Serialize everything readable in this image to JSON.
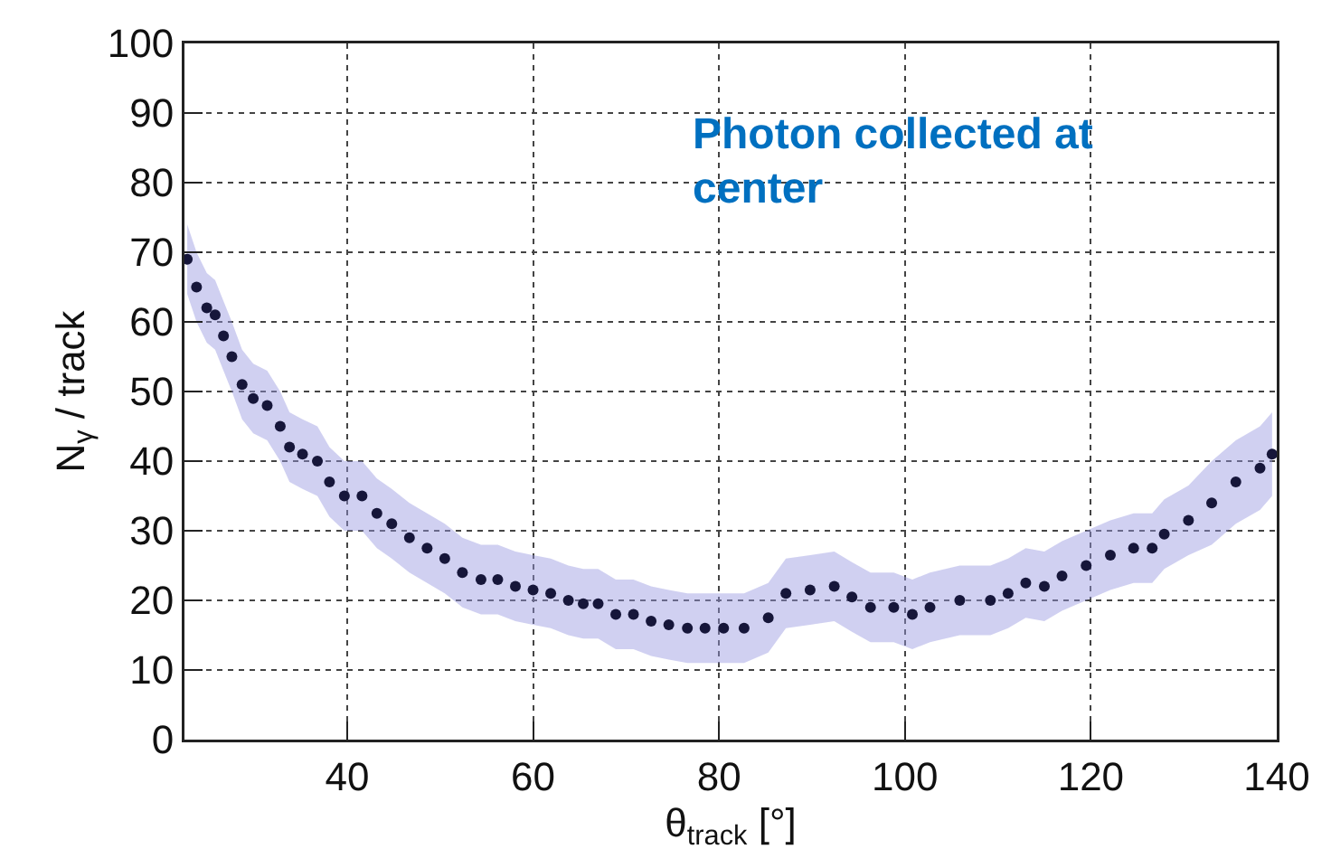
{
  "chart_data": {
    "type": "scatter",
    "xlabel": "θ$_{track}$ [°]",
    "ylabel": "N$_{γ}$ / track",
    "annotations": [
      "Photon collected at center"
    ],
    "xlim": [
      22.5,
      140
    ],
    "xticks": [
      40,
      60,
      80,
      100,
      120,
      140
    ],
    "ylim": [
      0,
      100
    ],
    "yticks": [
      0,
      10,
      20,
      30,
      40,
      50,
      60,
      70,
      80,
      90,
      100
    ],
    "grid": true,
    "marker": "circle",
    "x": [
      22.8,
      23.8,
      24.9,
      25.8,
      26.7,
      27.6,
      28.7,
      29.9,
      31.4,
      32.8,
      33.8,
      35.2,
      36.8,
      38.1,
      39.7,
      41.6,
      43.2,
      44.8,
      46.7,
      48.6,
      50.5,
      52.4,
      54.4,
      56.2,
      58.1,
      60,
      61.9,
      63.8,
      65.4,
      67,
      68.9,
      70.8,
      72.7,
      74.6,
      76.6,
      78.5,
      80.5,
      82.7,
      85.3,
      87.2,
      89.8,
      92.4,
      94.3,
      96.3,
      98.8,
      100.8,
      102.7,
      105.9,
      109.2,
      111.1,
      113,
      115,
      116.9,
      119.5,
      122.1,
      124.6,
      126.6,
      127.9,
      130.5,
      133,
      135.6,
      138.2,
      139.5
    ],
    "series": [
      {
        "color": "#16163a",
        "values": [
          69,
          65,
          62,
          61,
          58,
          55,
          51,
          49,
          48,
          45,
          42,
          41,
          40,
          37,
          35,
          35,
          32.5,
          31,
          29,
          27.5,
          26,
          24,
          23,
          23,
          22,
          21.5,
          21,
          20,
          19.5,
          19.5,
          18,
          18,
          17,
          16.5,
          16,
          16,
          16,
          16,
          17.5,
          21,
          21.5,
          22,
          20.5,
          19,
          19,
          18,
          19,
          20,
          20,
          21,
          22.5,
          22,
          23.5,
          25,
          26.5,
          27.5,
          27.5,
          29.5,
          31.5,
          34,
          37,
          39,
          41
        ],
        "lower": [
          64,
          60,
          57,
          56,
          53,
          50,
          46,
          44,
          43,
          40,
          37,
          36,
          35,
          32,
          30,
          30,
          27.5,
          26,
          24,
          22.5,
          21,
          19,
          18,
          18,
          17,
          16.5,
          16,
          15,
          14.5,
          14.5,
          13,
          13,
          12,
          11.5,
          11,
          11,
          11,
          11,
          12.5,
          16,
          16.5,
          17,
          15.5,
          14,
          14,
          13,
          14,
          15,
          15,
          16,
          17.5,
          17,
          18.5,
          20,
          21.5,
          22.5,
          22.5,
          24.5,
          26.5,
          28,
          31,
          33,
          35
        ],
        "upper": [
          74,
          70,
          67,
          66,
          63,
          60,
          56,
          54,
          53,
          50,
          47,
          46,
          45,
          42,
          40,
          40,
          37.5,
          36,
          34,
          32.5,
          31,
          29,
          28,
          28,
          27,
          26.5,
          26,
          25,
          24.5,
          24.5,
          23,
          23,
          22,
          21.5,
          21,
          21,
          21,
          21,
          22.5,
          26,
          26.5,
          27,
          25.5,
          24,
          24,
          23,
          24,
          25,
          25,
          26,
          27.5,
          27,
          28.5,
          30,
          31.5,
          32.5,
          32.5,
          34.5,
          36.5,
          40,
          43,
          45,
          47
        ]
      }
    ]
  }
}
